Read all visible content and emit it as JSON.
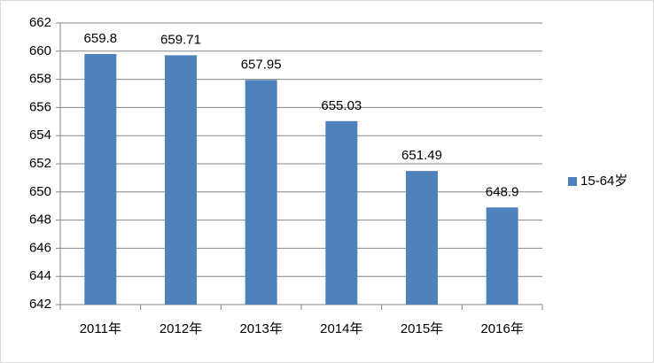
{
  "chart_data": {
    "type": "bar",
    "categories": [
      "2011年",
      "2012年",
      "2013年",
      "2014年",
      "2015年",
      "2016年"
    ],
    "series": [
      {
        "name": "15-64岁",
        "color": "#4f81bd",
        "values": [
          659.8,
          659.71,
          657.95,
          655.03,
          651.49,
          648.9
        ]
      }
    ],
    "ylim": [
      642,
      662
    ],
    "yticks": [
      642,
      644,
      646,
      648,
      650,
      652,
      654,
      656,
      658,
      660,
      662
    ],
    "grid": true,
    "legend": "right"
  }
}
